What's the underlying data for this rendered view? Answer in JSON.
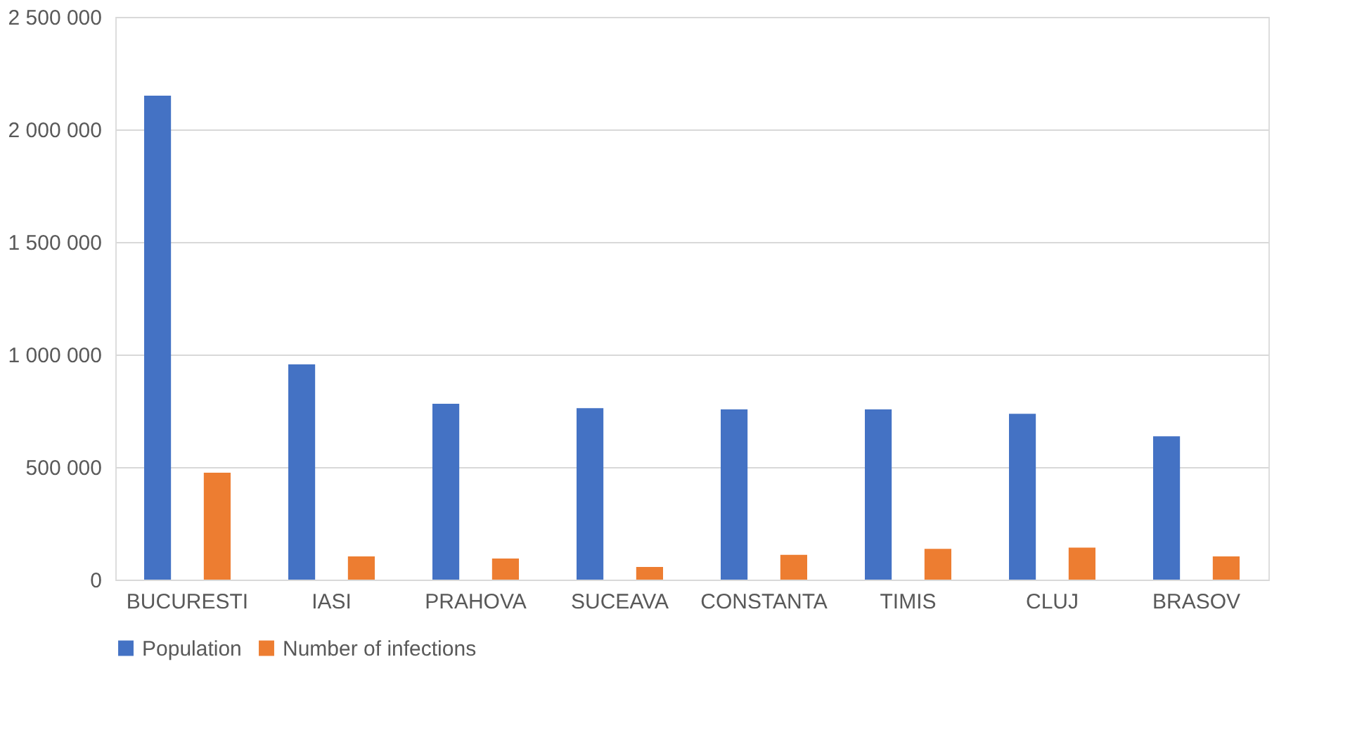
{
  "chart_data": {
    "type": "bar",
    "categories": [
      "BUCURESTI",
      "IASI",
      "PRAHOVA",
      "SUCEAVA",
      "CONSTANTA",
      "TIMIS",
      "CLUJ",
      "BRASOV"
    ],
    "series": [
      {
        "name": "Population",
        "color": "#4472c4",
        "values": [
          2150000,
          956000,
          781000,
          762000,
          756000,
          756000,
          737000,
          637000
        ]
      },
      {
        "name": "Number of infections",
        "color": "#ed7d31",
        "values": [
          475000,
          103000,
          94000,
          56000,
          110000,
          137000,
          142000,
          103000
        ]
      }
    ],
    "ylim": [
      0,
      2500000
    ],
    "yticks": [
      {
        "value": 0,
        "label": "0"
      },
      {
        "value": 500000,
        "label": "500 000"
      },
      {
        "value": 1000000,
        "label": "1 000 000"
      },
      {
        "value": 1500000,
        "label": "1 500 000"
      },
      {
        "value": 2000000,
        "label": "2 000 000"
      },
      {
        "value": 2500000,
        "label": "2 500 000"
      }
    ],
    "grid": "y",
    "legend": "bottom"
  }
}
